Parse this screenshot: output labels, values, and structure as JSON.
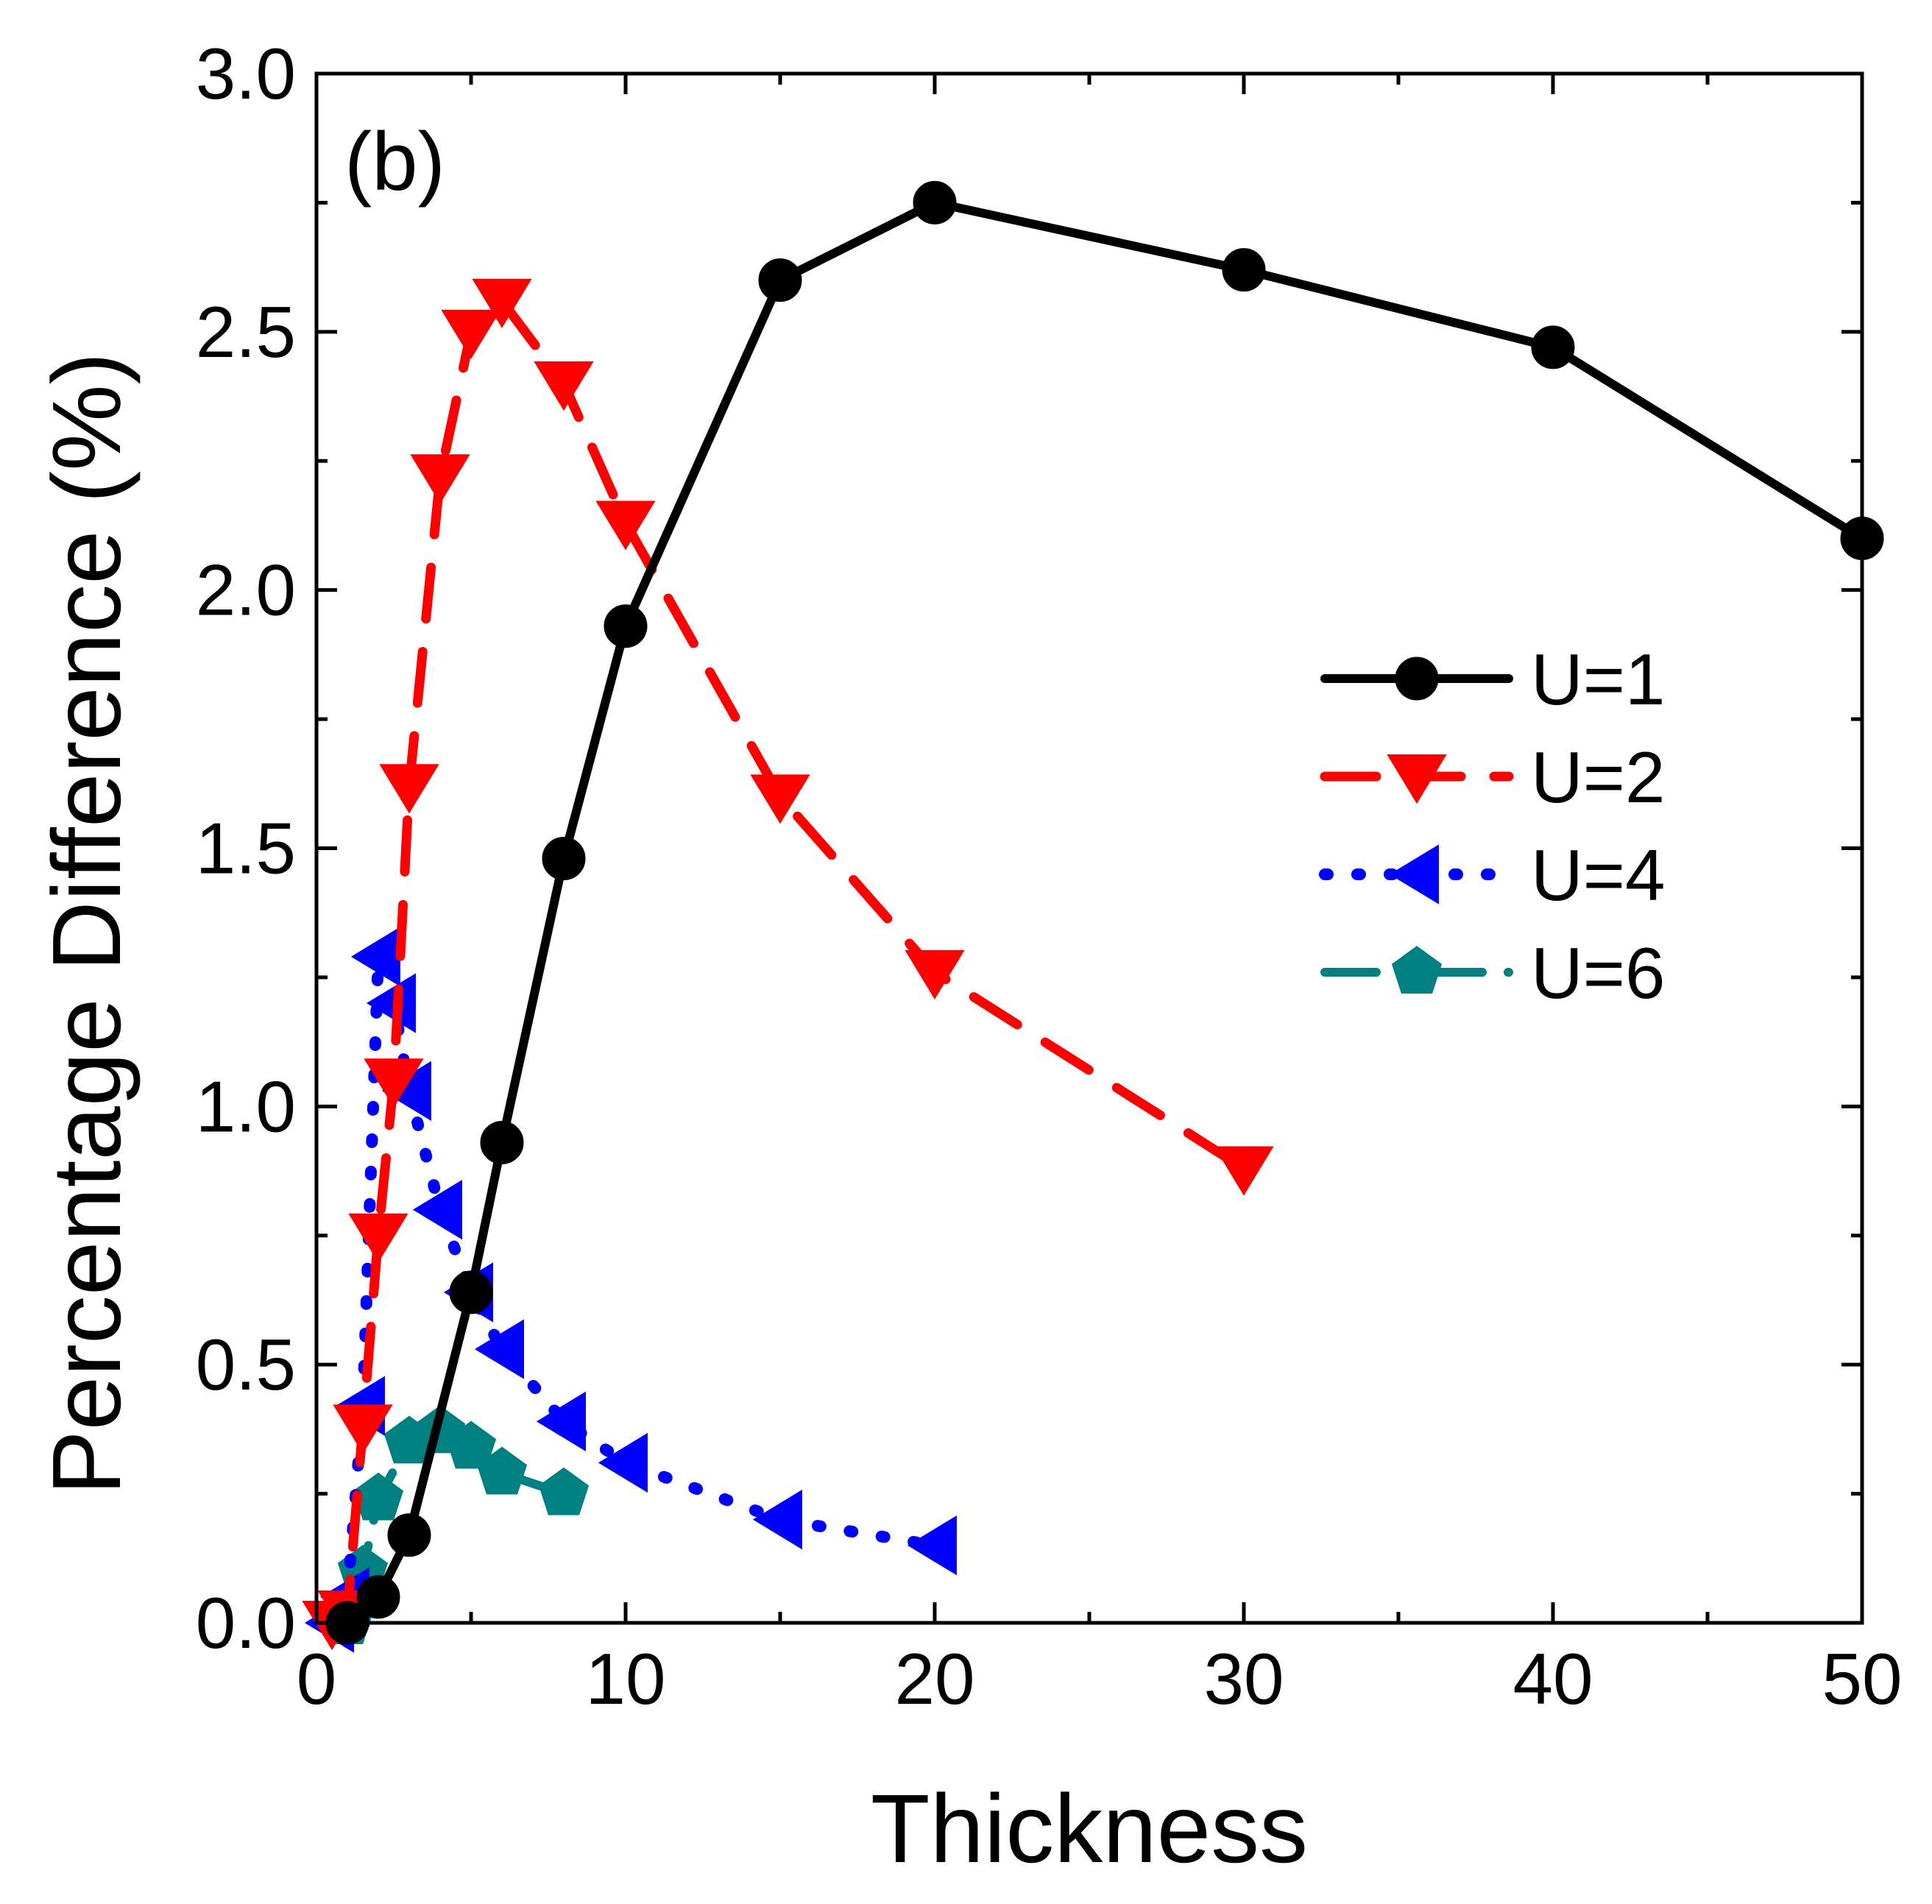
{
  "chart_data": {
    "type": "line",
    "panel_label": "(b)",
    "xlabel": "Thickness",
    "ylabel": "Percentage Difference (%)",
    "xlim": [
      0,
      50
    ],
    "ylim": [
      0,
      3.0
    ],
    "x_ticks": [
      0,
      10,
      20,
      30,
      40,
      50
    ],
    "x_tick_labels": [
      "0",
      "10",
      "20",
      "30",
      "40",
      "50"
    ],
    "y_ticks": [
      0.0,
      0.5,
      1.0,
      1.5,
      2.0,
      2.5,
      3.0
    ],
    "y_tick_labels": [
      "0.0",
      "0.5",
      "1.0",
      "1.5",
      "2.0",
      "2.5",
      "3.0"
    ],
    "grid": false,
    "legend_position": "right-center",
    "series": [
      {
        "name": "U=1",
        "color": "#000000",
        "marker": "circle",
        "line_style": "solid",
        "x": [
          1,
          2,
          3,
          5,
          6,
          8,
          10,
          15,
          20,
          30,
          40,
          50
        ],
        "y": [
          0.0,
          0.05,
          0.17,
          0.64,
          0.93,
          1.48,
          1.93,
          2.6,
          2.75,
          2.62,
          2.47,
          2.1
        ]
      },
      {
        "name": "U=2",
        "color": "#ff0000",
        "marker": "triangle-down",
        "line_style": "dash",
        "x": [
          0.5,
          1,
          1.5,
          2,
          2.5,
          3,
          4,
          5,
          6,
          8,
          10,
          15,
          20,
          30
        ],
        "y": [
          0.0,
          0.02,
          0.38,
          0.75,
          1.05,
          1.62,
          2.22,
          2.5,
          2.56,
          2.4,
          2.13,
          1.6,
          1.26,
          0.88
        ]
      },
      {
        "name": "U=4",
        "color": "#0000ff",
        "marker": "triangle-left",
        "line_style": "dot",
        "x": [
          0.5,
          1,
          1.5,
          2,
          2.5,
          3,
          4,
          5,
          6,
          8,
          10,
          15,
          20
        ],
        "y": [
          0.0,
          0.05,
          0.42,
          1.29,
          1.2,
          1.03,
          0.8,
          0.64,
          0.53,
          0.39,
          0.31,
          0.2,
          0.15
        ]
      },
      {
        "name": "U=6",
        "color": "#008080",
        "marker": "pentagon",
        "line_style": "dash-dot",
        "x": [
          1,
          1.5,
          2,
          3,
          4,
          5,
          6,
          8
        ],
        "y": [
          0.0,
          0.1,
          0.24,
          0.35,
          0.37,
          0.34,
          0.29,
          0.25
        ]
      }
    ]
  }
}
